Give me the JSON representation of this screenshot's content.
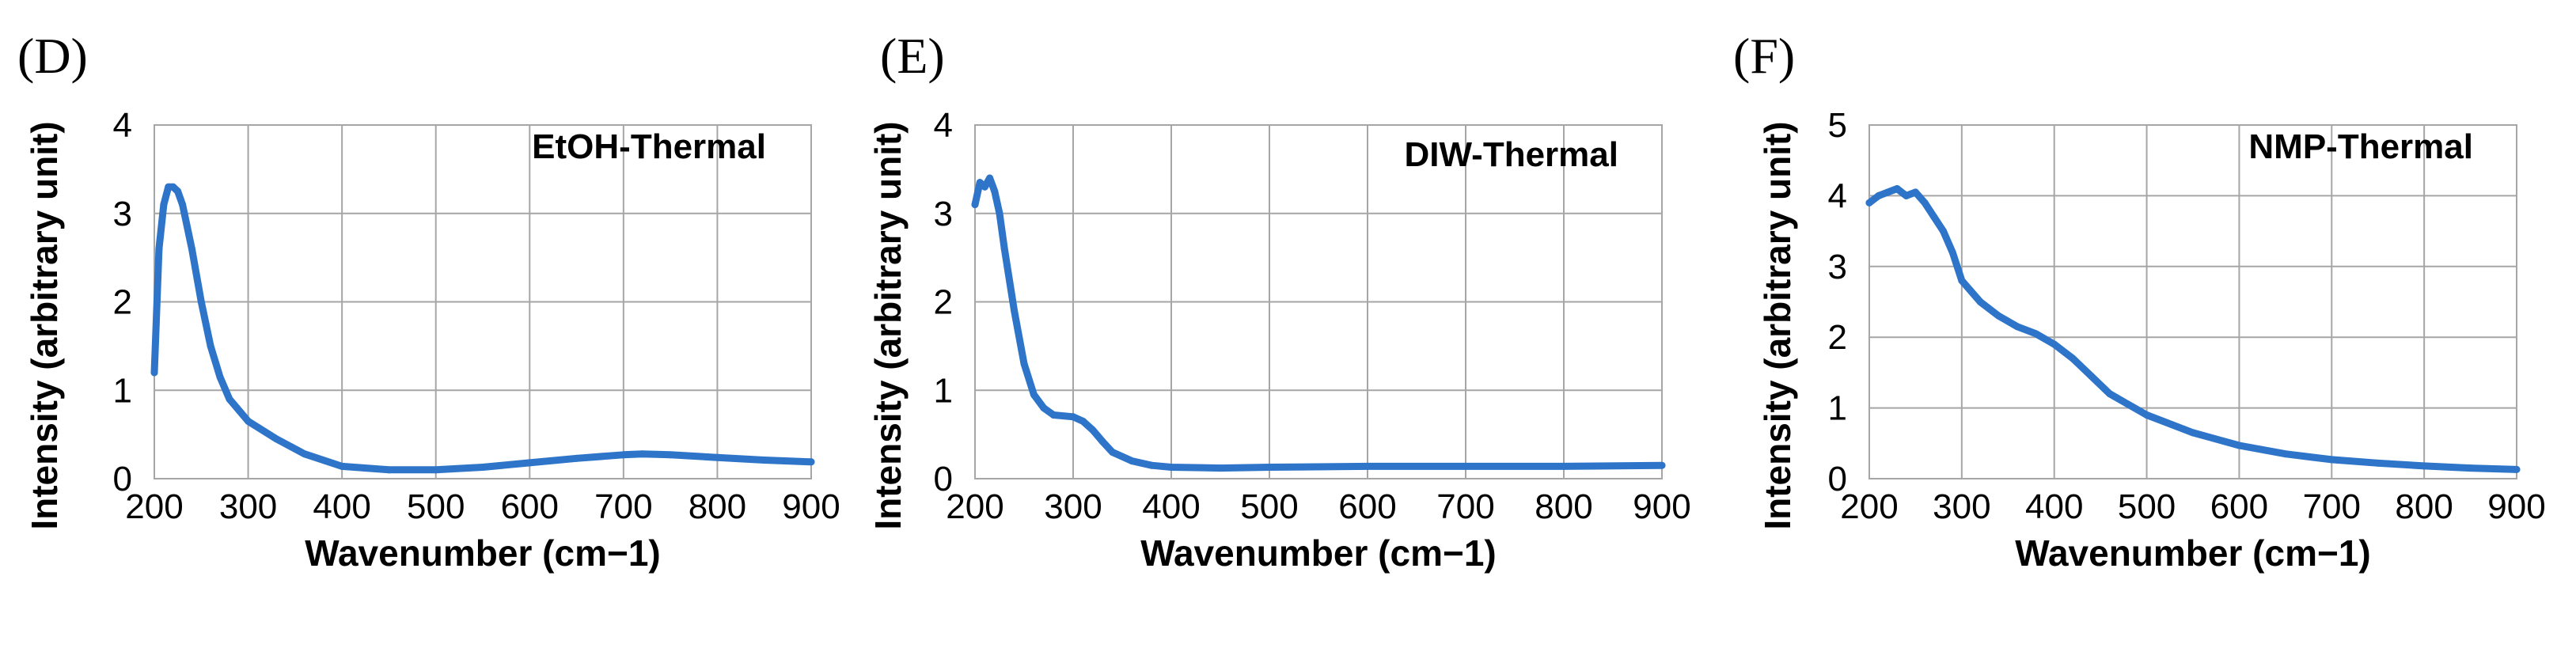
{
  "figure": {
    "series_color": "#2E75C9",
    "grid_color": "#A6A6A6"
  },
  "chart_data": [
    {
      "panel": "(D)",
      "type": "line",
      "annotation": "EtOH-Thermal",
      "xlabel": "Wavenumber (cm−1)",
      "ylabel": "Intensity (arbitrary unit)",
      "xlim": [
        200,
        900
      ],
      "ylim": [
        0,
        4
      ],
      "xticks": [
        "200",
        "300",
        "400",
        "500",
        "600",
        "700",
        "800",
        "900"
      ],
      "yticks": [
        "0",
        "1",
        "2",
        "3",
        "4"
      ],
      "grid": true,
      "series": [
        {
          "x": [
            200,
            205,
            210,
            215,
            220,
            225,
            230,
            240,
            250,
            260,
            270,
            280,
            300,
            330,
            360,
            400,
            450,
            500,
            550,
            600,
            650,
            700,
            720,
            750,
            800,
            850,
            900
          ],
          "y": [
            1.2,
            2.6,
            3.1,
            3.3,
            3.3,
            3.25,
            3.1,
            2.6,
            2.0,
            1.5,
            1.15,
            0.9,
            0.65,
            0.45,
            0.28,
            0.14,
            0.1,
            0.1,
            0.13,
            0.18,
            0.23,
            0.27,
            0.28,
            0.27,
            0.24,
            0.21,
            0.19
          ]
        }
      ]
    },
    {
      "panel": "(E)",
      "type": "line",
      "annotation": "DIW-Thermal",
      "xlabel": "Wavenumber (cm−1)",
      "ylabel": "Intensity (arbitrary unit)",
      "xlim": [
        200,
        900
      ],
      "ylim": [
        0,
        4
      ],
      "xticks": [
        "200",
        "300",
        "400",
        "500",
        "600",
        "700",
        "800",
        "900"
      ],
      "yticks": [
        "0",
        "1",
        "2",
        "3",
        "4"
      ],
      "grid": true,
      "series": [
        {
          "x": [
            200,
            205,
            210,
            215,
            220,
            225,
            230,
            240,
            250,
            260,
            270,
            280,
            300,
            310,
            320,
            330,
            340,
            360,
            380,
            400,
            450,
            500,
            600,
            700,
            800,
            900
          ],
          "y": [
            3.1,
            3.35,
            3.3,
            3.4,
            3.25,
            3.0,
            2.6,
            1.9,
            1.3,
            0.95,
            0.8,
            0.72,
            0.7,
            0.65,
            0.55,
            0.42,
            0.3,
            0.2,
            0.15,
            0.13,
            0.12,
            0.13,
            0.14,
            0.14,
            0.14,
            0.15
          ]
        }
      ]
    },
    {
      "panel": "(F)",
      "type": "line",
      "annotation": "NMP-Thermal",
      "xlabel": "Wavenumber (cm−1)",
      "ylabel": "Intensity (arbitrary unit)",
      "xlim": [
        200,
        900
      ],
      "ylim": [
        0,
        5
      ],
      "xticks": [
        "200",
        "300",
        "400",
        "500",
        "600",
        "700",
        "800",
        "900"
      ],
      "yticks": [
        "0",
        "1",
        "2",
        "3",
        "4",
        "5"
      ],
      "grid": true,
      "series": [
        {
          "x": [
            200,
            210,
            220,
            230,
            240,
            250,
            260,
            270,
            280,
            290,
            300,
            320,
            340,
            360,
            380,
            400,
            420,
            440,
            460,
            480,
            500,
            550,
            600,
            650,
            700,
            750,
            800,
            850,
            900
          ],
          "y": [
            3.9,
            4.0,
            4.05,
            4.1,
            4.0,
            4.05,
            3.9,
            3.7,
            3.5,
            3.2,
            2.8,
            2.5,
            2.3,
            2.15,
            2.05,
            1.9,
            1.7,
            1.45,
            1.2,
            1.05,
            0.9,
            0.65,
            0.47,
            0.35,
            0.27,
            0.22,
            0.18,
            0.15,
            0.13
          ]
        }
      ]
    }
  ]
}
